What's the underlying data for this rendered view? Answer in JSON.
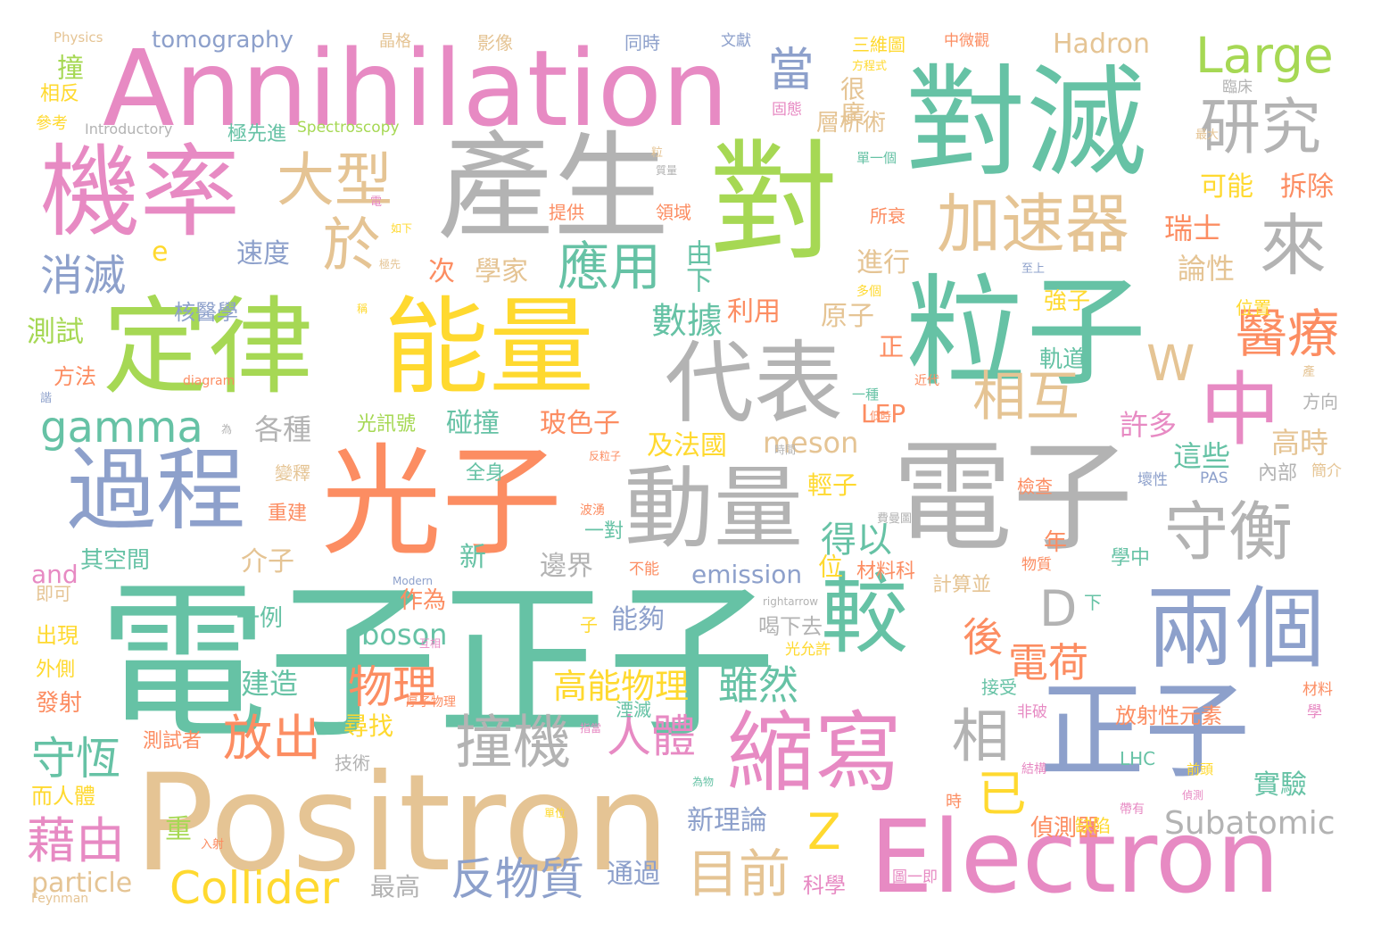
{
  "palette": {
    "teal": "#66c2a5",
    "orange": "#fc8d62",
    "blue": "#8da0cb",
    "pink": "#e78ac3",
    "green": "#a6d854",
    "yellow": "#ffd92f",
    "tan": "#e5c494",
    "gray": "#b3b3b3"
  },
  "words": [
    "電子正子",
    "Positron",
    "Annihilation",
    "Electron",
    "產生",
    "對滅",
    "對",
    "粒子",
    "光子",
    "電子",
    "能量",
    "定律",
    "機率",
    "過程",
    "動量",
    "代表",
    "正子",
    "兩個",
    "較",
    "縮寫",
    "中",
    "守衡",
    "來",
    "加速器",
    "大型",
    "研究",
    "醫療",
    "撞機",
    "Collider",
    "反物質",
    "目前",
    "物理",
    "放出",
    "人體",
    "藉由",
    "守恆",
    "應用",
    "於",
    "當",
    "Large",
    "相互",
    "相",
    "D",
    "W",
    "Z",
    "gamma",
    "消滅",
    "Subatomic",
    "已",
    "後",
    "電荷",
    "雖然",
    "高能物理",
    "得以",
    "數據",
    "Hadron",
    "meson",
    "boson",
    "emission",
    "particle",
    "tomography",
    "Spectroscopy",
    "and",
    "e",
    "測試",
    "實驗",
    "偵測器",
    "瑞士",
    "拆除",
    "可能",
    "論性",
    "位置",
    "高時",
    "這些",
    "許多",
    "方向",
    "簡介",
    "內部",
    "壞性",
    "PAS",
    "檢查",
    "年",
    "學中",
    "LHC",
    "放射性元素",
    "接受",
    "非破",
    "學",
    "材料",
    "晶格",
    "影像",
    "同時",
    "文獻",
    "三維圖",
    "中微觀",
    "方程式",
    "臨床",
    "最大",
    "層析術",
    "很廣",
    "固態",
    "提供",
    "領域",
    "所衰",
    "進行",
    "原子",
    "正",
    "軌道",
    "強子",
    "LEP",
    "及法國",
    "玻色子",
    "碰撞",
    "各種",
    "介子",
    "邊界",
    "位",
    "一例",
    "作為",
    "能夠",
    "建造",
    "尋找",
    "技術",
    "測試者",
    "新理論",
    "重",
    "通過",
    "最高",
    "科學",
    "缺陷",
    "圖一即",
    "而人體",
    "出現",
    "外側",
    "發射",
    "即可",
    "其空間",
    "重建",
    "變釋",
    "全身",
    "新",
    "一對",
    "湮滅",
    "喝下去",
    "光允許",
    "計算並",
    "材料科",
    "下",
    "不能",
    "物質",
    "次",
    "學家",
    "速度",
    "利用",
    "核醫學",
    "光訊號",
    "輕子",
    "撞",
    "相反",
    "參考",
    "極先進",
    "Introductory",
    "Physics",
    "Feynman",
    "Modern",
    "rightarrow",
    "diagram",
    "極先",
    "如下",
    "至上",
    "多個",
    "一種",
    "近代",
    "由下",
    "電",
    "粒",
    "產",
    "結構",
    "前頭",
    "偵測",
    "帶有",
    "入射",
    "單位",
    "指當",
    "互相",
    "厚子物理",
    "波湧",
    "時間",
    "反粒子",
    "費曼圖",
    "低時",
    "為",
    "質量",
    "單一個",
    "方法",
    "子",
    "諧",
    "為物",
    "時",
    "稱",
    "先"
  ]
}
